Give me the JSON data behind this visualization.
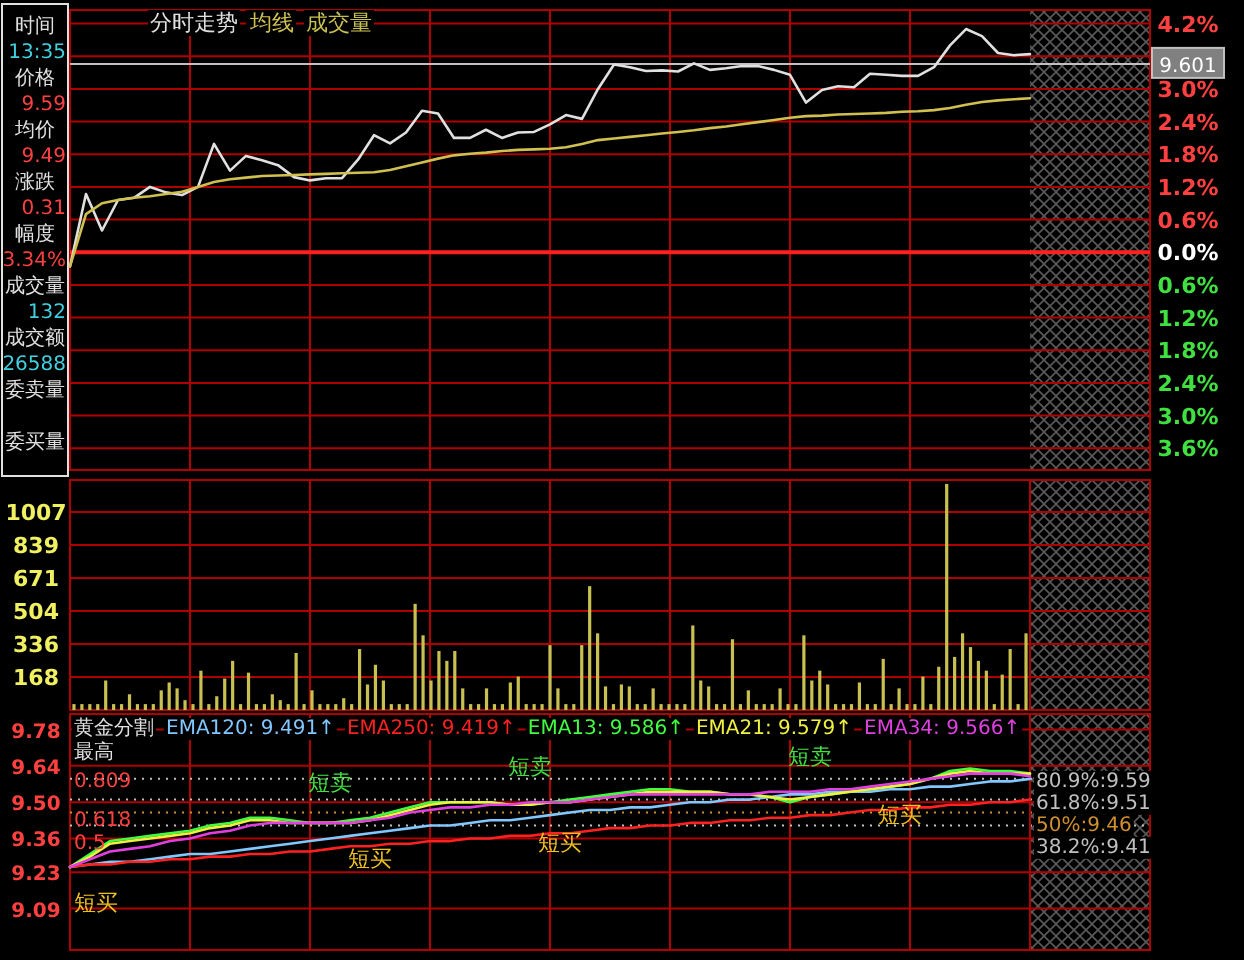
{
  "chart_data": [
    {
      "type": "other",
      "categories": [
        "时间",
        "价格",
        "均价",
        "涨跌",
        "幅度",
        "成交量",
        "成交额",
        "委卖量",
        "委买量"
      ],
      "value_labels": [
        "13:35",
        "9.59",
        "9.49",
        "0.31",
        "3.34%",
        "132",
        "26588",
        null,
        null
      ],
      "colors": [
        "#40d0e0",
        "#ff4040",
        "#ff4040",
        "#ff4040",
        "#ff4040",
        "#40d0e0",
        "#40d0e0",
        null,
        null
      ]
    },
    {
      "type": "line",
      "title": "分时走势",
      "ylim": [
        -4.0,
        4.45
      ],
      "grid": true,
      "tick_labels": "y",
      "categories": [
        null,
        null,
        null,
        null,
        null,
        null,
        null,
        null,
        null,
        null,
        null,
        null,
        null,
        null,
        null,
        null,
        null,
        null,
        null,
        null,
        null,
        null,
        null,
        null,
        null,
        null,
        null,
        null,
        null,
        null,
        null,
        null,
        null,
        null,
        null,
        null,
        null,
        null,
        null,
        null,
        null,
        null,
        null,
        null,
        null,
        null,
        null,
        null,
        null,
        null,
        null,
        null,
        null,
        null,
        null,
        null,
        null,
        null,
        null,
        null,
        null
      ],
      "yticks": [
        {
          "value": 4.2,
          "label": "4.2%"
        },
        {
          "value": 3.6,
          "label": null
        },
        {
          "value": 3.0,
          "label": "3.0%"
        },
        {
          "value": 2.4,
          "label": "2.4%"
        },
        {
          "value": 1.8,
          "label": "1.8%"
        },
        {
          "value": 1.2,
          "label": "1.2%"
        },
        {
          "value": 0.6,
          "label": "0.6%"
        },
        {
          "value": 0,
          "label": "0.0%"
        },
        {
          "value": -0.6,
          "label": "0.6%"
        },
        {
          "value": -1.2,
          "label": "1.2%"
        },
        {
          "value": -1.8,
          "label": "1.8%"
        },
        {
          "value": -2.4,
          "label": "2.4%"
        },
        {
          "value": -3.0,
          "label": "3.0%"
        },
        {
          "value": -3.6,
          "label": "3.6%"
        }
      ],
      "ref_lines": [
        {
          "axis": "y",
          "value": 3.46,
          "color": "#c0c0c0"
        },
        {
          "axis": "y",
          "value": 0,
          "color": "#ff2020"
        }
      ],
      "annotations": [
        "9.601"
      ],
      "series": [
        {
          "color": "#e0e0e0",
          "values": [
            -0.26,
            1.07,
            0.4,
            0.96,
            1.0,
            1.2,
            1.1,
            1.05,
            1.2,
            1.99,
            1.5,
            1.77,
            1.69,
            1.6,
            1.38,
            1.32,
            1.36,
            1.36,
            1.7,
            2.15,
            2.0,
            2.2,
            2.6,
            2.55,
            2.1,
            2.1,
            2.25,
            2.1,
            2.2,
            2.21,
            2.35,
            2.52,
            2.45,
            3.0,
            3.45,
            3.4,
            3.33,
            3.34,
            3.32,
            3.47,
            3.35,
            3.38,
            3.42,
            3.42,
            3.35,
            3.26,
            2.75,
            2.98,
            3.05,
            3.03,
            3.28,
            3.26,
            3.24,
            3.24,
            3.4,
            3.8,
            4.1,
            3.97,
            3.66,
            3.62,
            3.64
          ]
        },
        {
          "name": "均线",
          "color": "#d0c050",
          "values": [
            -0.26,
            0.7,
            0.9,
            0.96,
            1.0,
            1.03,
            1.07,
            1.11,
            1.2,
            1.29,
            1.34,
            1.37,
            1.4,
            1.41,
            1.42,
            1.43,
            1.44,
            1.45,
            1.46,
            1.47,
            1.51,
            1.58,
            1.65,
            1.72,
            1.78,
            1.81,
            1.83,
            1.86,
            1.88,
            1.89,
            1.9,
            1.93,
            1.99,
            2.06,
            2.09,
            2.12,
            2.15,
            2.18,
            2.21,
            2.24,
            2.28,
            2.31,
            2.35,
            2.39,
            2.43,
            2.47,
            2.5,
            2.51,
            2.53,
            2.54,
            2.55,
            2.56,
            2.58,
            2.59,
            2.61,
            2.65,
            2.71,
            2.76,
            2.79,
            2.81,
            2.83
          ]
        }
      ]
    },
    {
      "type": "bar",
      "ylim": [
        0,
        1170
      ],
      "grid": true,
      "tick_labels": "y",
      "yticks": [
        168,
        336,
        504,
        671,
        839,
        1007
      ],
      "categories": [
        null,
        null,
        null,
        null,
        null,
        null,
        null,
        null,
        null,
        null,
        null,
        null,
        null,
        null,
        null,
        null,
        null,
        null,
        null,
        null,
        null,
        null,
        null,
        null,
        null,
        null,
        null,
        null,
        null,
        null,
        null,
        null,
        null,
        null,
        null,
        null,
        null,
        null,
        null,
        null,
        null,
        null,
        null,
        null,
        null,
        null,
        null,
        null,
        null,
        null,
        null,
        null,
        null,
        null,
        null,
        null,
        null,
        null,
        null,
        null,
        null,
        null,
        null,
        null,
        null,
        null,
        null,
        null,
        null,
        null,
        null,
        null,
        null,
        null,
        null,
        null,
        null,
        null,
        null,
        null,
        null,
        null,
        null,
        null,
        null,
        null,
        null,
        null,
        null,
        null,
        null,
        null,
        null,
        null,
        null,
        null,
        null,
        null,
        null,
        null,
        null,
        null,
        null,
        null,
        null,
        null,
        null,
        null,
        null,
        null,
        null,
        null,
        null,
        null,
        null,
        null,
        null,
        null,
        null,
        null,
        null
      ],
      "series": [
        {
          "name": "成交量",
          "color": "#c8c050",
          "values": [
            30,
            30,
            30,
            30,
            150,
            30,
            30,
            80,
            30,
            30,
            30,
            100,
            140,
            110,
            50,
            30,
            200,
            30,
            70,
            160,
            250,
            30,
            190,
            30,
            30,
            80,
            50,
            30,
            290,
            30,
            100,
            30,
            30,
            30,
            60,
            30,
            310,
            130,
            230,
            150,
            30,
            30,
            30,
            540,
            380,
            150,
            300,
            250,
            300,
            110,
            30,
            30,
            110,
            30,
            30,
            140,
            170,
            30,
            30,
            30,
            330,
            110,
            30,
            30,
            330,
            630,
            390,
            120,
            30,
            130,
            120,
            30,
            30,
            110,
            30,
            30,
            30,
            30,
            430,
            150,
            120,
            30,
            30,
            360,
            30,
            100,
            30,
            30,
            30,
            110,
            30,
            30,
            380,
            150,
            200,
            130,
            30,
            30,
            30,
            140,
            30,
            30,
            260,
            30,
            110,
            30,
            30,
            170,
            30,
            220,
            1150,
            270,
            390,
            320,
            250,
            200,
            30,
            180,
            310,
            30,
            390
          ]
        }
      ]
    },
    {
      "type": "line",
      "title": "黄金分割",
      "ylim": [
        8.93,
        9.84
      ],
      "grid": true,
      "tick_labels": "y",
      "yticks": [
        9.78,
        9.64,
        {
          "value": 9.5,
          "label": "9.50"
        },
        9.36,
        9.23,
        9.09
      ],
      "categories": [
        null,
        null,
        null,
        null,
        null,
        null,
        null,
        null,
        null,
        null,
        null,
        null,
        null,
        null,
        null,
        null,
        null,
        null,
        null,
        null,
        null,
        null,
        null,
        null,
        null,
        null,
        null,
        null,
        null,
        null,
        null,
        null,
        null,
        null,
        null,
        null,
        null,
        null,
        null,
        null,
        null,
        null,
        null,
        null,
        null,
        null,
        null,
        null,
        null
      ],
      "ref_lines": [
        {
          "axis": "y",
          "value": 9.59,
          "label": "80.9%:9.59",
          "line_style": "dotted",
          "color": "#c0c0c0"
        },
        {
          "axis": "y",
          "value": 9.51,
          "label": "61.8%:9.51",
          "line_style": "dotted",
          "color": "#c0c0c0"
        },
        {
          "axis": "y",
          "value": 9.46,
          "label": "50%:9.46",
          "line_style": "dotted",
          "color": "#d09030"
        },
        {
          "axis": "y",
          "value": 9.41,
          "label": "38.2%:9.41",
          "line_style": "dotted",
          "color": "#c0c0c0"
        }
      ],
      "annotations": [
        "最高",
        "短卖",
        "短卖",
        "短卖",
        "短买",
        "短买",
        "短买",
        "短买",
        {
          "text": "0.809",
          "y": 9.59
        },
        {
          "text": "0.618",
          "y": 9.44
        },
        {
          "text": "0.5",
          "y": 9.35
        }
      ],
      "series": [
        {
          "name": "EMA120: 9.491↑",
          "color": "#80c8ff",
          "values": [
            9.25,
            9.26,
            9.27,
            9.27,
            9.28,
            9.29,
            9.3,
            9.3,
            9.31,
            9.32,
            9.33,
            9.34,
            9.35,
            9.36,
            9.37,
            9.38,
            9.39,
            9.4,
            9.41,
            9.41,
            9.42,
            9.43,
            9.43,
            9.44,
            9.45,
            9.46,
            9.47,
            9.47,
            9.48,
            9.48,
            9.49,
            9.5,
            9.5,
            9.51,
            9.51,
            9.52,
            9.53,
            9.53,
            9.54,
            9.54,
            9.54,
            9.55,
            9.55,
            9.56,
            9.56,
            9.57,
            9.58,
            9.58,
            9.59
          ]
        },
        {
          "name": "EMA250: 9.419↑",
          "color": "#ff2020",
          "values": [
            9.25,
            9.26,
            9.26,
            9.27,
            9.27,
            9.28,
            9.28,
            9.29,
            9.29,
            9.3,
            9.3,
            9.31,
            9.31,
            9.32,
            9.33,
            9.33,
            9.34,
            9.34,
            9.35,
            9.35,
            9.36,
            9.36,
            9.37,
            9.37,
            9.38,
            9.38,
            9.39,
            9.4,
            9.4,
            9.41,
            9.41,
            9.42,
            9.42,
            9.43,
            9.43,
            9.44,
            9.44,
            9.45,
            9.45,
            9.46,
            9.47,
            9.47,
            9.48,
            9.48,
            9.49,
            9.49,
            9.5,
            9.5,
            9.51
          ]
        },
        {
          "name": "EMA13: 9.586↑",
          "color": "#40ff40",
          "values": [
            9.25,
            9.3,
            9.35,
            9.36,
            9.37,
            9.38,
            9.39,
            9.41,
            9.42,
            9.44,
            9.44,
            9.43,
            9.42,
            9.42,
            9.43,
            9.44,
            9.46,
            9.48,
            9.5,
            9.5,
            9.5,
            9.5,
            9.49,
            9.49,
            9.5,
            9.51,
            9.52,
            9.53,
            9.54,
            9.55,
            9.55,
            9.54,
            9.54,
            9.53,
            9.53,
            9.52,
            9.5,
            9.52,
            9.53,
            9.54,
            9.55,
            9.56,
            9.57,
            9.59,
            9.62,
            9.63,
            9.62,
            9.62,
            9.61
          ]
        },
        {
          "name": "EMA21: 9.579↑",
          "color": "#f0f040",
          "values": [
            9.25,
            9.29,
            9.34,
            9.35,
            9.36,
            9.37,
            9.38,
            9.4,
            9.41,
            9.43,
            9.43,
            9.42,
            9.42,
            9.42,
            9.42,
            9.43,
            9.45,
            9.47,
            9.49,
            9.5,
            9.5,
            9.5,
            9.49,
            9.49,
            9.5,
            9.5,
            9.51,
            9.52,
            9.53,
            9.54,
            9.54,
            9.54,
            9.54,
            9.53,
            9.53,
            9.52,
            9.51,
            9.52,
            9.53,
            9.54,
            9.55,
            9.56,
            9.57,
            9.59,
            9.61,
            9.62,
            9.61,
            9.61,
            9.61
          ]
        },
        {
          "name": "EMA34: 9.566↑",
          "color": "#e040e0",
          "values": [
            9.25,
            9.28,
            9.31,
            9.32,
            9.33,
            9.35,
            9.36,
            9.38,
            9.39,
            9.41,
            9.42,
            9.42,
            9.42,
            9.42,
            9.42,
            9.43,
            9.44,
            9.46,
            9.47,
            9.48,
            9.48,
            9.49,
            9.49,
            9.5,
            9.5,
            9.5,
            9.51,
            9.52,
            9.53,
            9.53,
            9.53,
            9.53,
            9.53,
            9.53,
            9.53,
            9.54,
            9.54,
            9.54,
            9.55,
            9.55,
            9.56,
            9.57,
            9.58,
            9.59,
            9.6,
            9.61,
            9.61,
            9.61,
            9.6
          ]
        }
      ]
    }
  ]
}
